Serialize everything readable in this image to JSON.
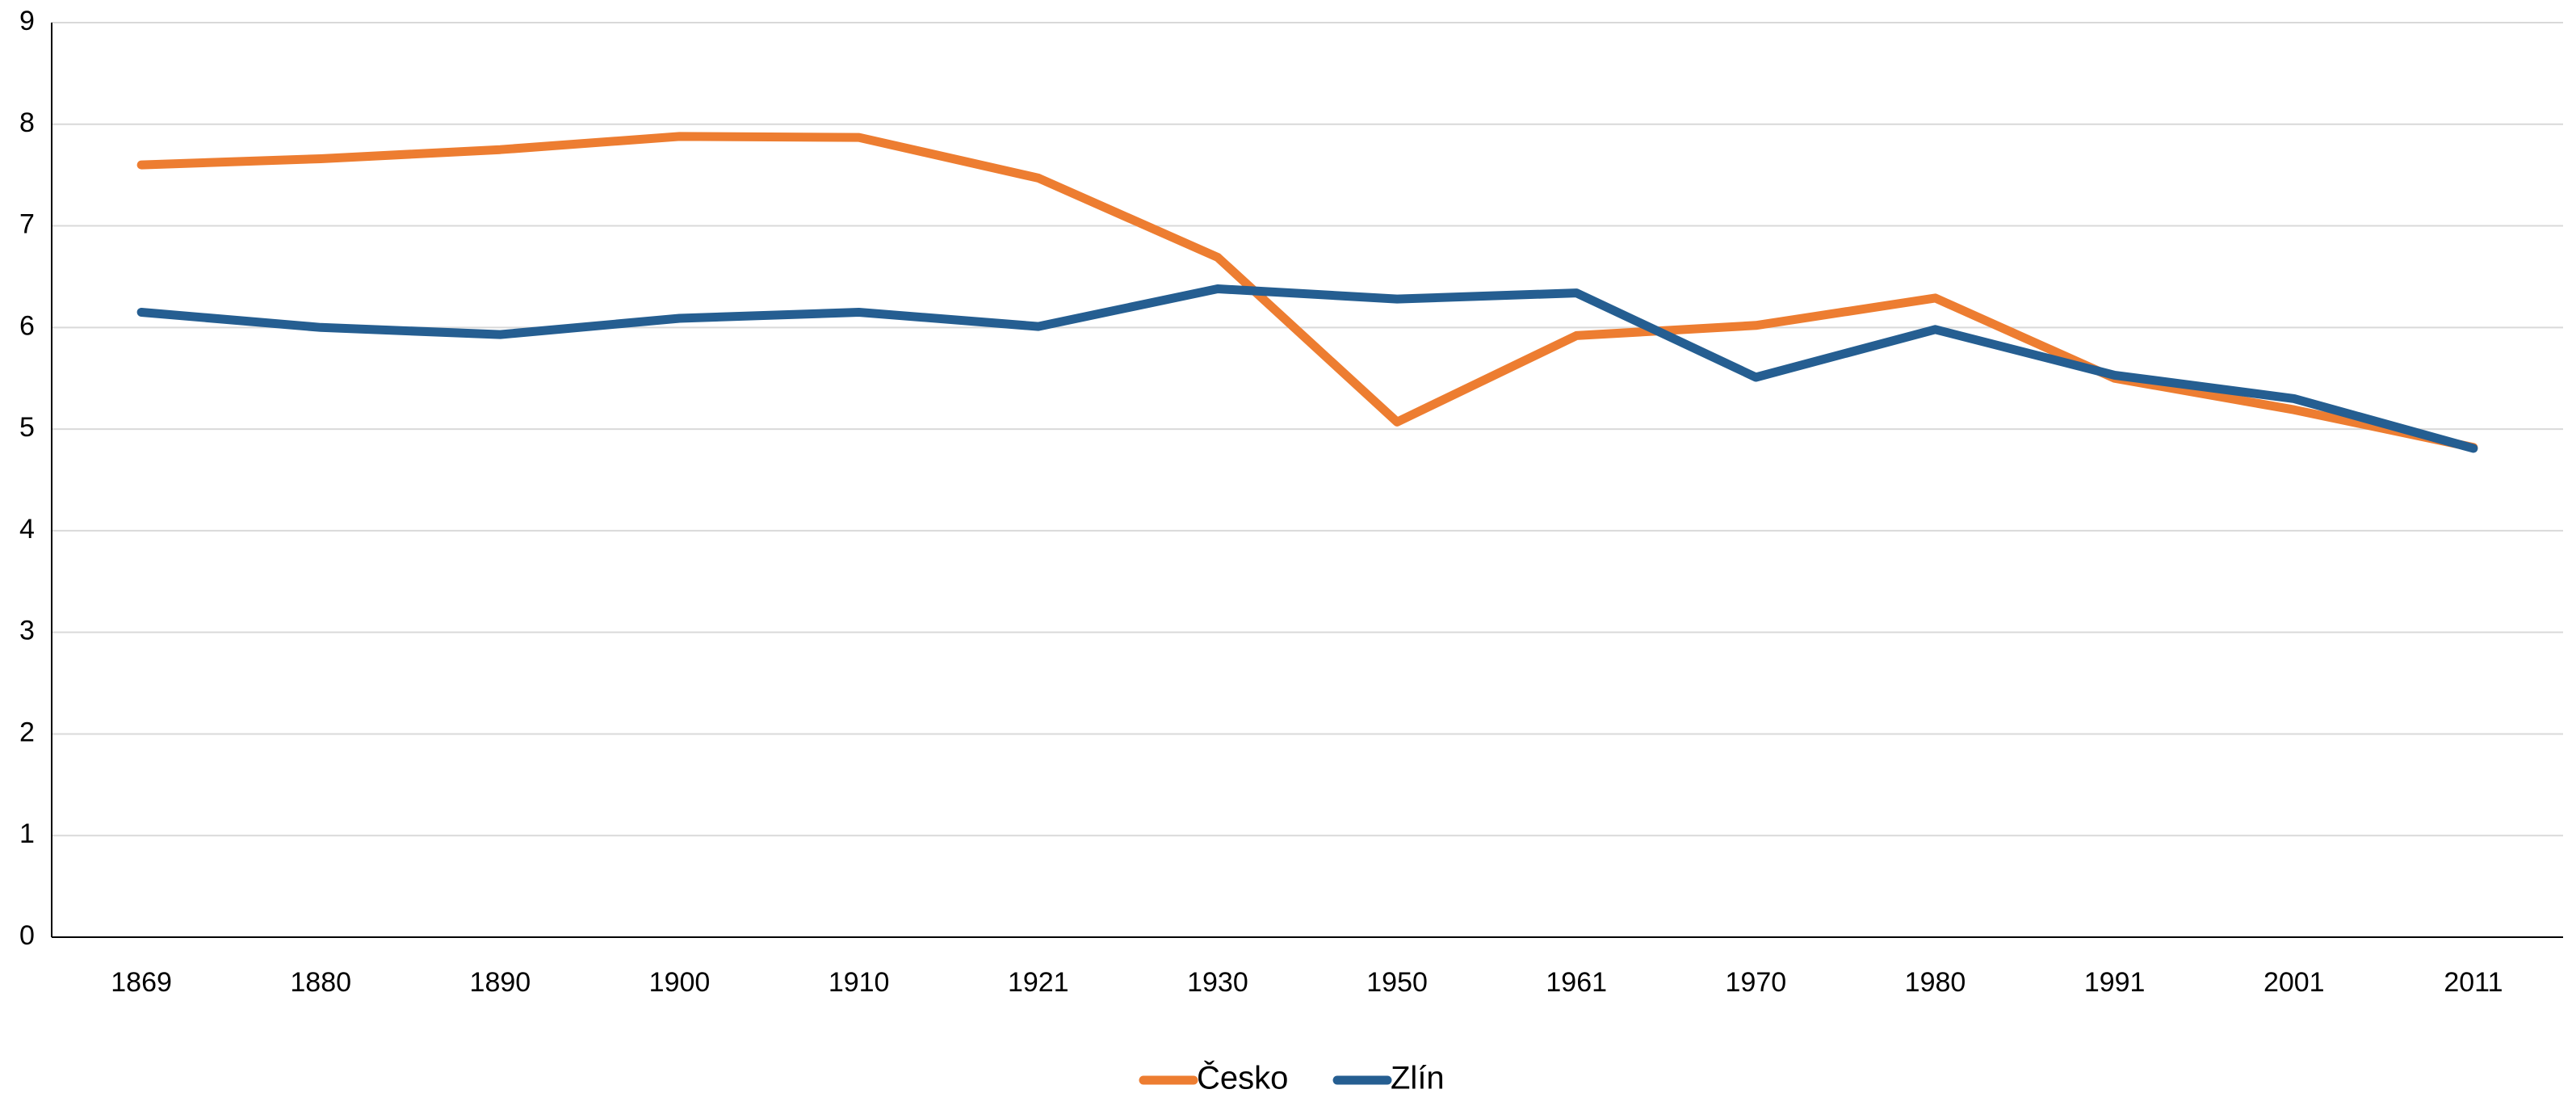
{
  "chart_data": {
    "type": "line",
    "categories": [
      "1869",
      "1880",
      "1890",
      "1900",
      "1910",
      "1921",
      "1930",
      "1950",
      "1961",
      "1970",
      "1980",
      "1991",
      "2001",
      "2011"
    ],
    "series": [
      {
        "name": "Česko",
        "color": "#ED7D31",
        "values": [
          7.6,
          7.66,
          7.75,
          7.88,
          7.87,
          7.47,
          6.69,
          5.07,
          5.92,
          6.02,
          6.29,
          5.5,
          5.19,
          4.82
        ]
      },
      {
        "name": "Zlín",
        "color": "#255E91",
        "values": [
          6.15,
          6.0,
          5.93,
          6.09,
          6.15,
          6.01,
          6.38,
          6.28,
          6.34,
          5.51,
          5.98,
          5.53,
          5.3,
          4.81
        ]
      }
    ],
    "y_ticks": [
      "0",
      "1",
      "2",
      "3",
      "4",
      "5",
      "6",
      "7",
      "8",
      "9"
    ],
    "ylim": [
      0,
      9
    ],
    "grid": true,
    "gridline_color": "#D9D9D9",
    "axis_color": "#000000",
    "legend_position": "bottom-center",
    "title": "",
    "xlabel": "",
    "ylabel": ""
  }
}
